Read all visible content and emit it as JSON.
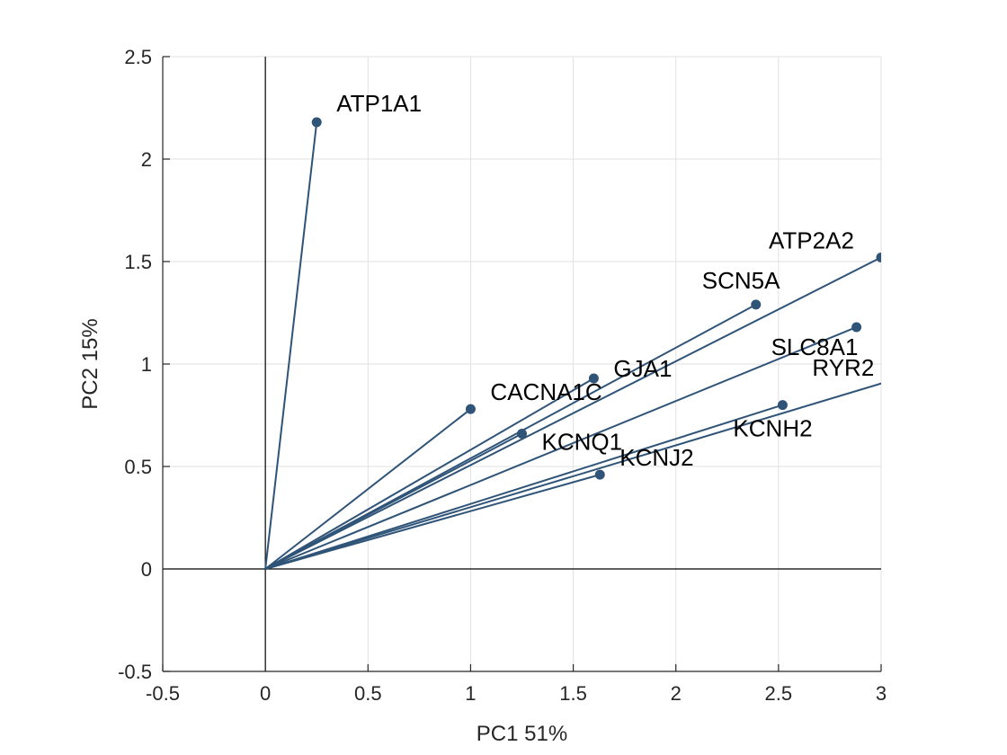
{
  "chart_data": {
    "type": "biplot",
    "title": "",
    "xlabel": "PC1 51%",
    "ylabel": "PC2 15%",
    "xlim": [
      -0.5,
      3
    ],
    "ylim": [
      -0.5,
      2.5
    ],
    "xticks": [
      -0.5,
      0,
      0.5,
      1,
      1.5,
      2,
      2.5,
      3
    ],
    "yticks": [
      -0.5,
      0,
      0.5,
      1,
      1.5,
      2,
      2.5
    ],
    "xtick_labels": [
      "-0.5",
      "0",
      "0.5",
      "1",
      "1.5",
      "2",
      "2.5",
      "3"
    ],
    "ytick_labels": [
      "-0.5",
      "0",
      "0.5",
      "1",
      "1.5",
      "2",
      "2.5"
    ],
    "grid": true,
    "vectors": [
      {
        "label": "ATP1A1",
        "x": 0.25,
        "y": 2.18
      },
      {
        "label": "CACNA1C",
        "x": 1.0,
        "y": 0.78
      },
      {
        "label": "KCNQ1",
        "x": 1.25,
        "y": 0.66
      },
      {
        "label": "GJA1",
        "x": 1.6,
        "y": 0.93
      },
      {
        "label": "SCN5A",
        "x": 2.39,
        "y": 1.29
      },
      {
        "label": "ATP2A2",
        "x": 3.0,
        "y": 1.52
      },
      {
        "label": "SLC8A1",
        "x": 2.88,
        "y": 1.18
      },
      {
        "label": "RYR2",
        "x": 3.05,
        "y": 0.92
      },
      {
        "label": "KCNH2",
        "x": 2.52,
        "y": 0.8
      },
      {
        "label": "KCNJ2",
        "x": 1.63,
        "y": 0.46
      }
    ],
    "colors": {
      "vector": "#2f5478",
      "grid": "#e1e1e1",
      "axis": "#262626",
      "zero_line": "#000000"
    }
  }
}
